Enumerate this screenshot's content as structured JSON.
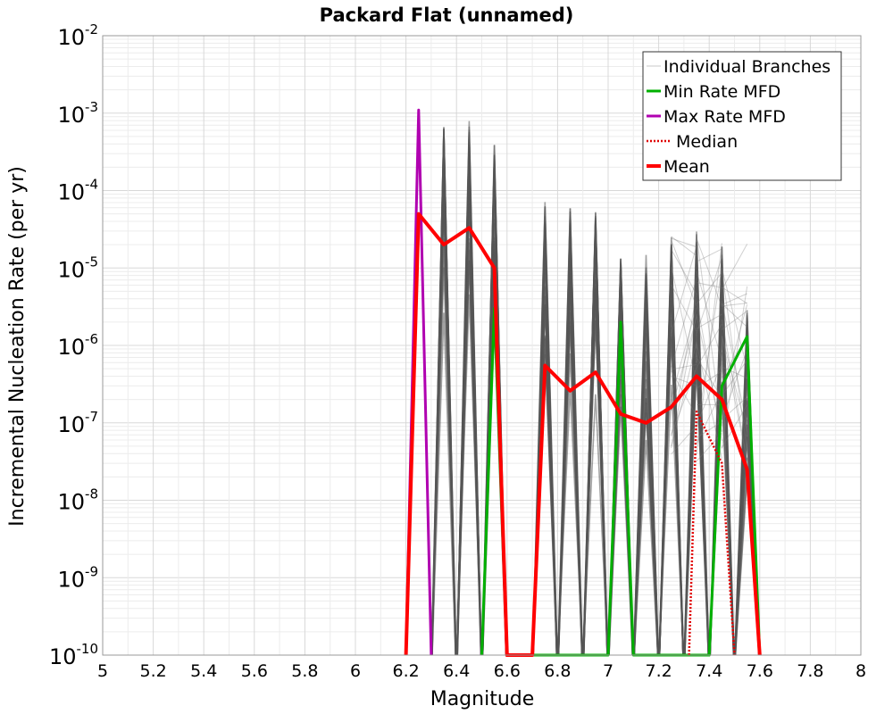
{
  "chart_data": {
    "type": "line",
    "title": "Packard Flat (unnamed)",
    "xlabel": "Magnitude",
    "ylabel": "Incremental Nucleation Rate (per yr)",
    "xlim": [
      5,
      8
    ],
    "ylim": [
      1e-10,
      0.01
    ],
    "yscale": "log",
    "grid": true,
    "legend_position": "top-right",
    "x_ticks": [
      "5",
      "5.2",
      "5.4",
      "5.6",
      "5.8",
      "6",
      "6.2",
      "6.4",
      "6.6",
      "6.8",
      "7",
      "7.2",
      "7.4",
      "7.6",
      "7.8",
      "8"
    ],
    "y_ticks": [
      {
        "base": "10",
        "exp": "-2"
      },
      {
        "base": "10",
        "exp": "-3"
      },
      {
        "base": "10",
        "exp": "-4"
      },
      {
        "base": "10",
        "exp": "-5"
      },
      {
        "base": "10",
        "exp": "-6"
      },
      {
        "base": "10",
        "exp": "-7"
      },
      {
        "base": "10",
        "exp": "-8"
      },
      {
        "base": "10",
        "exp": "-9"
      },
      {
        "base": "10",
        "exp": "-10"
      }
    ],
    "legend": [
      {
        "label": "Individual Branches",
        "color": "#c8c8c8",
        "style": "thin"
      },
      {
        "label": "Min Rate MFD",
        "color": "#00b000",
        "style": "solid"
      },
      {
        "label": "Max Rate MFD",
        "color": "#b000b0",
        "style": "solid"
      },
      {
        "label": "Median",
        "color": "#e00000",
        "style": "dotted"
      },
      {
        "label": "Mean",
        "color": "#ff0000",
        "style": "thick"
      }
    ],
    "branch_peaks": [
      {
        "m": 6.35,
        "rate": 0.0008
      },
      {
        "m": 6.45,
        "rate": 0.0008
      },
      {
        "m": 6.55,
        "rate": 0.0004
      },
      {
        "m": 6.75,
        "rate": 8e-05
      },
      {
        "m": 6.85,
        "rate": 6e-05
      },
      {
        "m": 6.95,
        "rate": 6e-05
      },
      {
        "m": 7.05,
        "rate": 1.5e-05
      },
      {
        "m": 7.15,
        "rate": 1.5e-05
      },
      {
        "m": 7.25,
        "rate": 3e-05
      },
      {
        "m": 7.35,
        "rate": 3e-05
      },
      {
        "m": 7.45,
        "rate": 2e-05
      },
      {
        "m": 7.55,
        "rate": 3e-06
      }
    ],
    "series": [
      {
        "name": "Mean",
        "color": "#ff0000",
        "x": [
          6.2,
          6.25,
          6.35,
          6.45,
          6.55,
          6.6,
          6.7,
          6.75,
          6.85,
          6.95,
          7.05,
          7.15,
          7.25,
          7.35,
          7.45,
          7.55,
          7.6
        ],
        "y": [
          1e-10,
          5e-05,
          2e-05,
          3.3e-05,
          1e-05,
          1e-10,
          1e-10,
          5.5e-07,
          2.6e-07,
          4.5e-07,
          1.3e-07,
          1e-07,
          1.6e-07,
          4e-07,
          2e-07,
          2.5e-08,
          1e-10
        ]
      },
      {
        "name": "Median",
        "color": "#e00000",
        "x": [
          7.32,
          7.35,
          7.45,
          7.5
        ],
        "y": [
          1e-10,
          1.4e-07,
          3e-08,
          1e-10
        ]
      },
      {
        "name": "Min Rate MFD",
        "color": "#00b000",
        "x": [
          6.5,
          6.55,
          6.6,
          7.0,
          7.05,
          7.1,
          7.4,
          7.45,
          7.55,
          7.6
        ],
        "y": [
          1e-10,
          3e-06,
          1e-10,
          1e-10,
          2e-06,
          1e-10,
          1e-10,
          3e-07,
          1.3e-06,
          1e-10
        ]
      },
      {
        "name": "Max Rate MFD",
        "color": "#b000b0",
        "x": [
          6.2,
          6.25,
          6.3
        ],
        "y": [
          1e-10,
          0.0011,
          1e-10
        ]
      }
    ]
  }
}
